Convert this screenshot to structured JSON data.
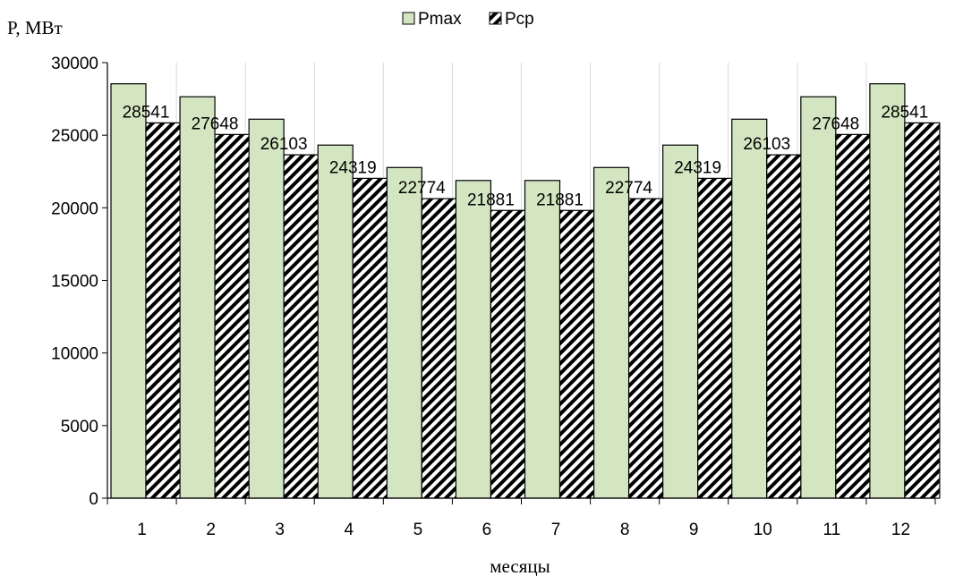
{
  "chart_data": {
    "type": "bar",
    "title": "",
    "ylabel": "P, МВт",
    "xlabel": "месяцы",
    "categories": [
      "1",
      "2",
      "3",
      "4",
      "5",
      "6",
      "7",
      "8",
      "9",
      "10",
      "11",
      "12"
    ],
    "series": [
      {
        "name": "Pmax",
        "color": "#d3e6c1",
        "pattern": "solid",
        "values": [
          28541,
          27648,
          26103,
          24319,
          22774,
          21881,
          21881,
          22774,
          24319,
          26103,
          27648,
          28541
        ]
      },
      {
        "name": "Pср",
        "color": "#000000",
        "pattern": "diagonal-hatch",
        "values": [
          25850,
          25050,
          23650,
          22030,
          20630,
          19820,
          19820,
          20630,
          22030,
          23650,
          25050,
          25850
        ]
      }
    ],
    "data_labels": [
      "28541",
      "27648",
      "26103",
      "24319",
      "22774",
      "21881",
      "21881",
      "22774",
      "24319",
      "26103",
      "27648",
      "28541"
    ],
    "y_ticks": [
      "0",
      "5000",
      "10000",
      "15000",
      "20000",
      "25000",
      "30000"
    ],
    "ylim": [
      0,
      30000
    ],
    "grid": "vertical category separators",
    "legend_position": "top-center"
  }
}
